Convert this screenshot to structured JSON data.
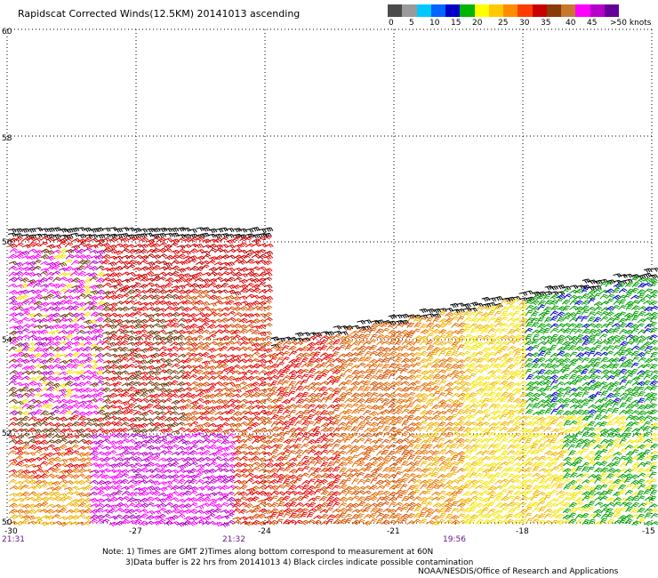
{
  "title": "Rapidscat Corrected Winds(12.5KM) 20141013 ascending",
  "legend": {
    "labels": [
      "0",
      "5",
      "10",
      "15",
      "20",
      "25",
      "30",
      "35",
      "40",
      "45",
      ">50 knots"
    ],
    "colors": [
      "#4a4a4a",
      "#9a9a9a",
      "#00c8ff",
      "#0064ff",
      "#0000c8",
      "#00b400",
      "#ffff00",
      "#ffc800",
      "#ff8c00",
      "#ff3c00",
      "#c80000",
      "#8b3a0a",
      "#c8782d",
      "#ff00ff",
      "#b400c8",
      "#640096"
    ]
  },
  "map": {
    "lat_labels": [
      "60",
      "58",
      "56",
      "54",
      "52",
      "50"
    ],
    "lon_labels": [
      "-30",
      "-27",
      "-24",
      "-21",
      "-18",
      "-15"
    ],
    "time_labels": [
      "21:31",
      "21:32",
      "19:56"
    ],
    "wind_colors": {
      "black": "#000000",
      "purple": "#b400c8",
      "magenta": "#ff00ff",
      "darkred": "#b40000",
      "red": "#e60000",
      "brown": "#6e3a0a",
      "orange": "#e66e00",
      "darkorange": "#d25000",
      "gold": "#f0b400",
      "yellow": "#f5e600",
      "green": "#00a000",
      "blue": "#0000c8"
    }
  },
  "notes": {
    "line1": "Note: 1) Times are GMT 2)Times along bottom correspond to measurement at 60N",
    "line2": "3)Data buffer is 22 hrs from 20141013 4) Black circles indicate possible contamination"
  },
  "credit": "NOAA/NESDIS/Office of Research and Applications"
}
